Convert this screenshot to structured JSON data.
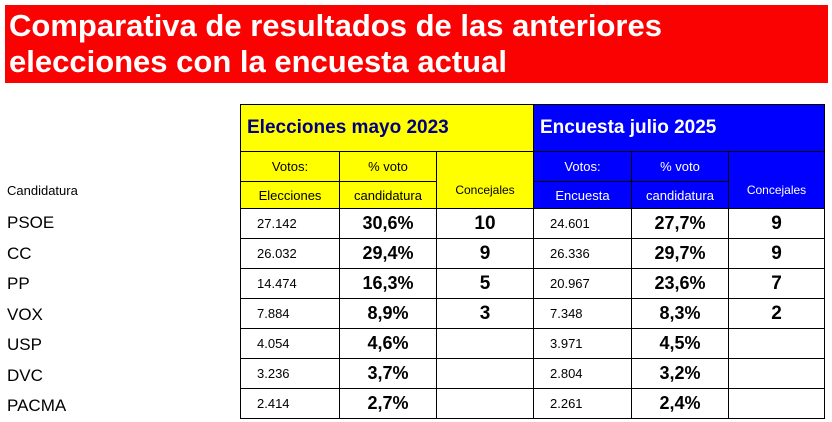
{
  "title": {
    "line1": "Comparativa de resultados de las anteriores",
    "line2": "elecciones con la encuesta actual"
  },
  "colors": {
    "title_bg": "#fb0202",
    "elecciones_bg": "#ffff00",
    "encuesta_bg": "#0000ff",
    "elecciones_title_text": "#000080"
  },
  "table": {
    "candidatura_header": "Candidatura",
    "elecciones": {
      "title": "Elecciones mayo 2023",
      "col_votos_1": "Votos:",
      "col_votos_2": "Elecciones",
      "col_pct_1": "% voto",
      "col_pct_2": "candidatura",
      "col_concejales": "Concejales"
    },
    "encuesta": {
      "title": "Encuesta julio 2025",
      "col_votos_1": "Votos:",
      "col_votos_2": "Encuesta",
      "col_pct_1": "% voto",
      "col_pct_2": "candidatura",
      "col_concejales": "Concejales"
    },
    "rows": [
      {
        "party": "PSOE",
        "e_votes": "27.142",
        "e_pct": "30,6%",
        "e_seats": "10",
        "s_votes": "24.601",
        "s_pct": "27,7%",
        "s_seats": "9"
      },
      {
        "party": "CC",
        "e_votes": "26.032",
        "e_pct": "29,4%",
        "e_seats": "9",
        "s_votes": "26.336",
        "s_pct": "29,7%",
        "s_seats": "9"
      },
      {
        "party": "PP",
        "e_votes": "14.474",
        "e_pct": "16,3%",
        "e_seats": "5",
        "s_votes": "20.967",
        "s_pct": "23,6%",
        "s_seats": "7"
      },
      {
        "party": "VOX",
        "e_votes": "7.884",
        "e_pct": "8,9%",
        "e_seats": "3",
        "s_votes": "7.348",
        "s_pct": "8,3%",
        "s_seats": "2"
      },
      {
        "party": "USP",
        "e_votes": "4.054",
        "e_pct": "4,6%",
        "e_seats": "",
        "s_votes": "3.971",
        "s_pct": "4,5%",
        "s_seats": ""
      },
      {
        "party": "DVC",
        "e_votes": "3.236",
        "e_pct": "3,7%",
        "e_seats": "",
        "s_votes": "2.804",
        "s_pct": "3,2%",
        "s_seats": ""
      },
      {
        "party": "PACMA",
        "e_votes": "2.414",
        "e_pct": "2,7%",
        "e_seats": "",
        "s_votes": "2.261",
        "s_pct": "2,4%",
        "s_seats": ""
      }
    ]
  }
}
